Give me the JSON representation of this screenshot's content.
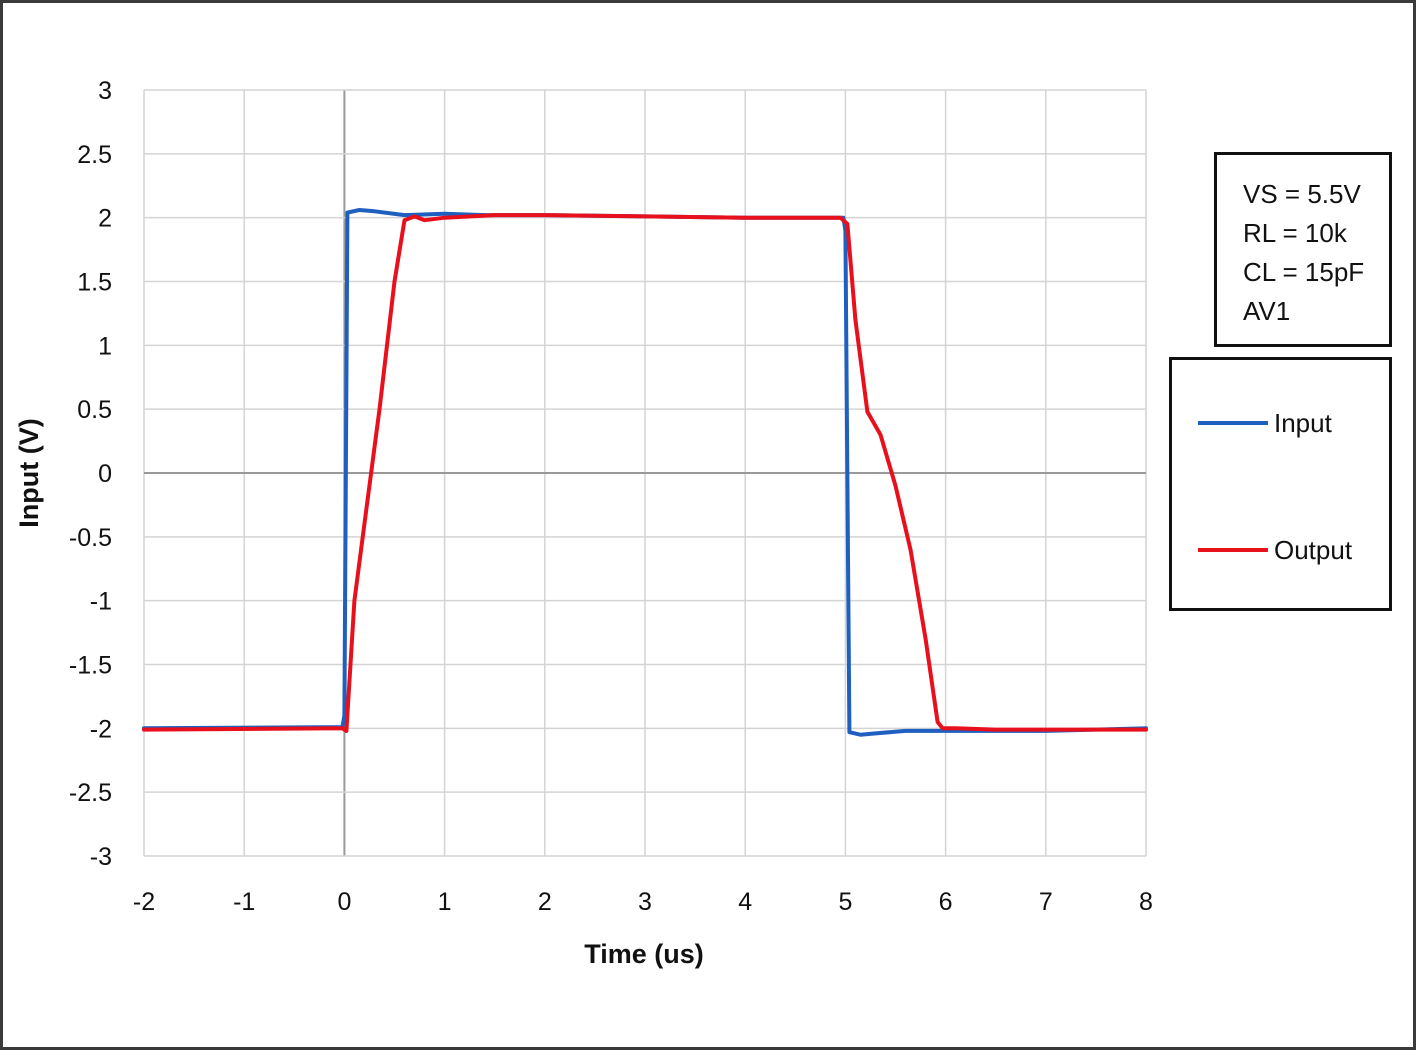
{
  "chart_data": {
    "type": "line",
    "title": "",
    "xlabel": "Time (us)",
    "ylabel": "Input (V)",
    "xlim": [
      -2,
      8
    ],
    "ylim": [
      -3,
      3
    ],
    "x_ticks": [
      "-2",
      "-1",
      "0",
      "1",
      "2",
      "3",
      "4",
      "5",
      "6",
      "7",
      "8"
    ],
    "y_ticks": [
      "3",
      "2.5",
      "2",
      "1.5",
      "1",
      "0.5",
      "0",
      "-0.5",
      "-1",
      "-1.5",
      "-2",
      "-2.5",
      "-3"
    ],
    "grid": true,
    "legend_position": "right",
    "series": [
      {
        "name": "Input",
        "color": "#1f5fbf",
        "points": [
          [
            -2,
            -2.0
          ],
          [
            -0.02,
            -1.99
          ],
          [
            0.0,
            -1.9
          ],
          [
            0.03,
            2.04
          ],
          [
            0.15,
            2.06
          ],
          [
            0.3,
            2.05
          ],
          [
            0.6,
            2.02
          ],
          [
            1.0,
            2.03
          ],
          [
            1.4,
            2.02
          ],
          [
            2,
            2.02
          ],
          [
            3,
            2.01
          ],
          [
            4,
            2.0
          ],
          [
            4.98,
            2.0
          ],
          [
            5.0,
            1.9
          ],
          [
            5.04,
            -2.03
          ],
          [
            5.15,
            -2.05
          ],
          [
            5.3,
            -2.04
          ],
          [
            5.6,
            -2.02
          ],
          [
            6.0,
            -2.02
          ],
          [
            7.0,
            -2.02
          ],
          [
            8.0,
            -2.0
          ]
        ]
      },
      {
        "name": "Output",
        "color": "#e8101c",
        "points": [
          [
            -2,
            -2.01
          ],
          [
            -0.02,
            -2.0
          ],
          [
            0.02,
            -2.02
          ],
          [
            0.1,
            -1.0
          ],
          [
            0.2,
            -0.4
          ],
          [
            0.35,
            0.5
          ],
          [
            0.5,
            1.5
          ],
          [
            0.6,
            1.98
          ],
          [
            0.7,
            2.01
          ],
          [
            0.8,
            1.98
          ],
          [
            1.0,
            2.0
          ],
          [
            1.5,
            2.02
          ],
          [
            2,
            2.02
          ],
          [
            3,
            2.01
          ],
          [
            4,
            2.0
          ],
          [
            4.95,
            2.0
          ],
          [
            5.02,
            1.95
          ],
          [
            5.1,
            1.2
          ],
          [
            5.22,
            0.48
          ],
          [
            5.35,
            0.3
          ],
          [
            5.5,
            -0.1
          ],
          [
            5.65,
            -0.6
          ],
          [
            5.8,
            -1.3
          ],
          [
            5.92,
            -1.95
          ],
          [
            5.97,
            -2.0
          ],
          [
            6.1,
            -2.0
          ],
          [
            6.5,
            -2.01
          ],
          [
            8.0,
            -2.01
          ]
        ]
      }
    ],
    "annotations": [
      "VS = 5.5V",
      "RL = 10k",
      "CL = 15pF",
      "AV1"
    ]
  }
}
